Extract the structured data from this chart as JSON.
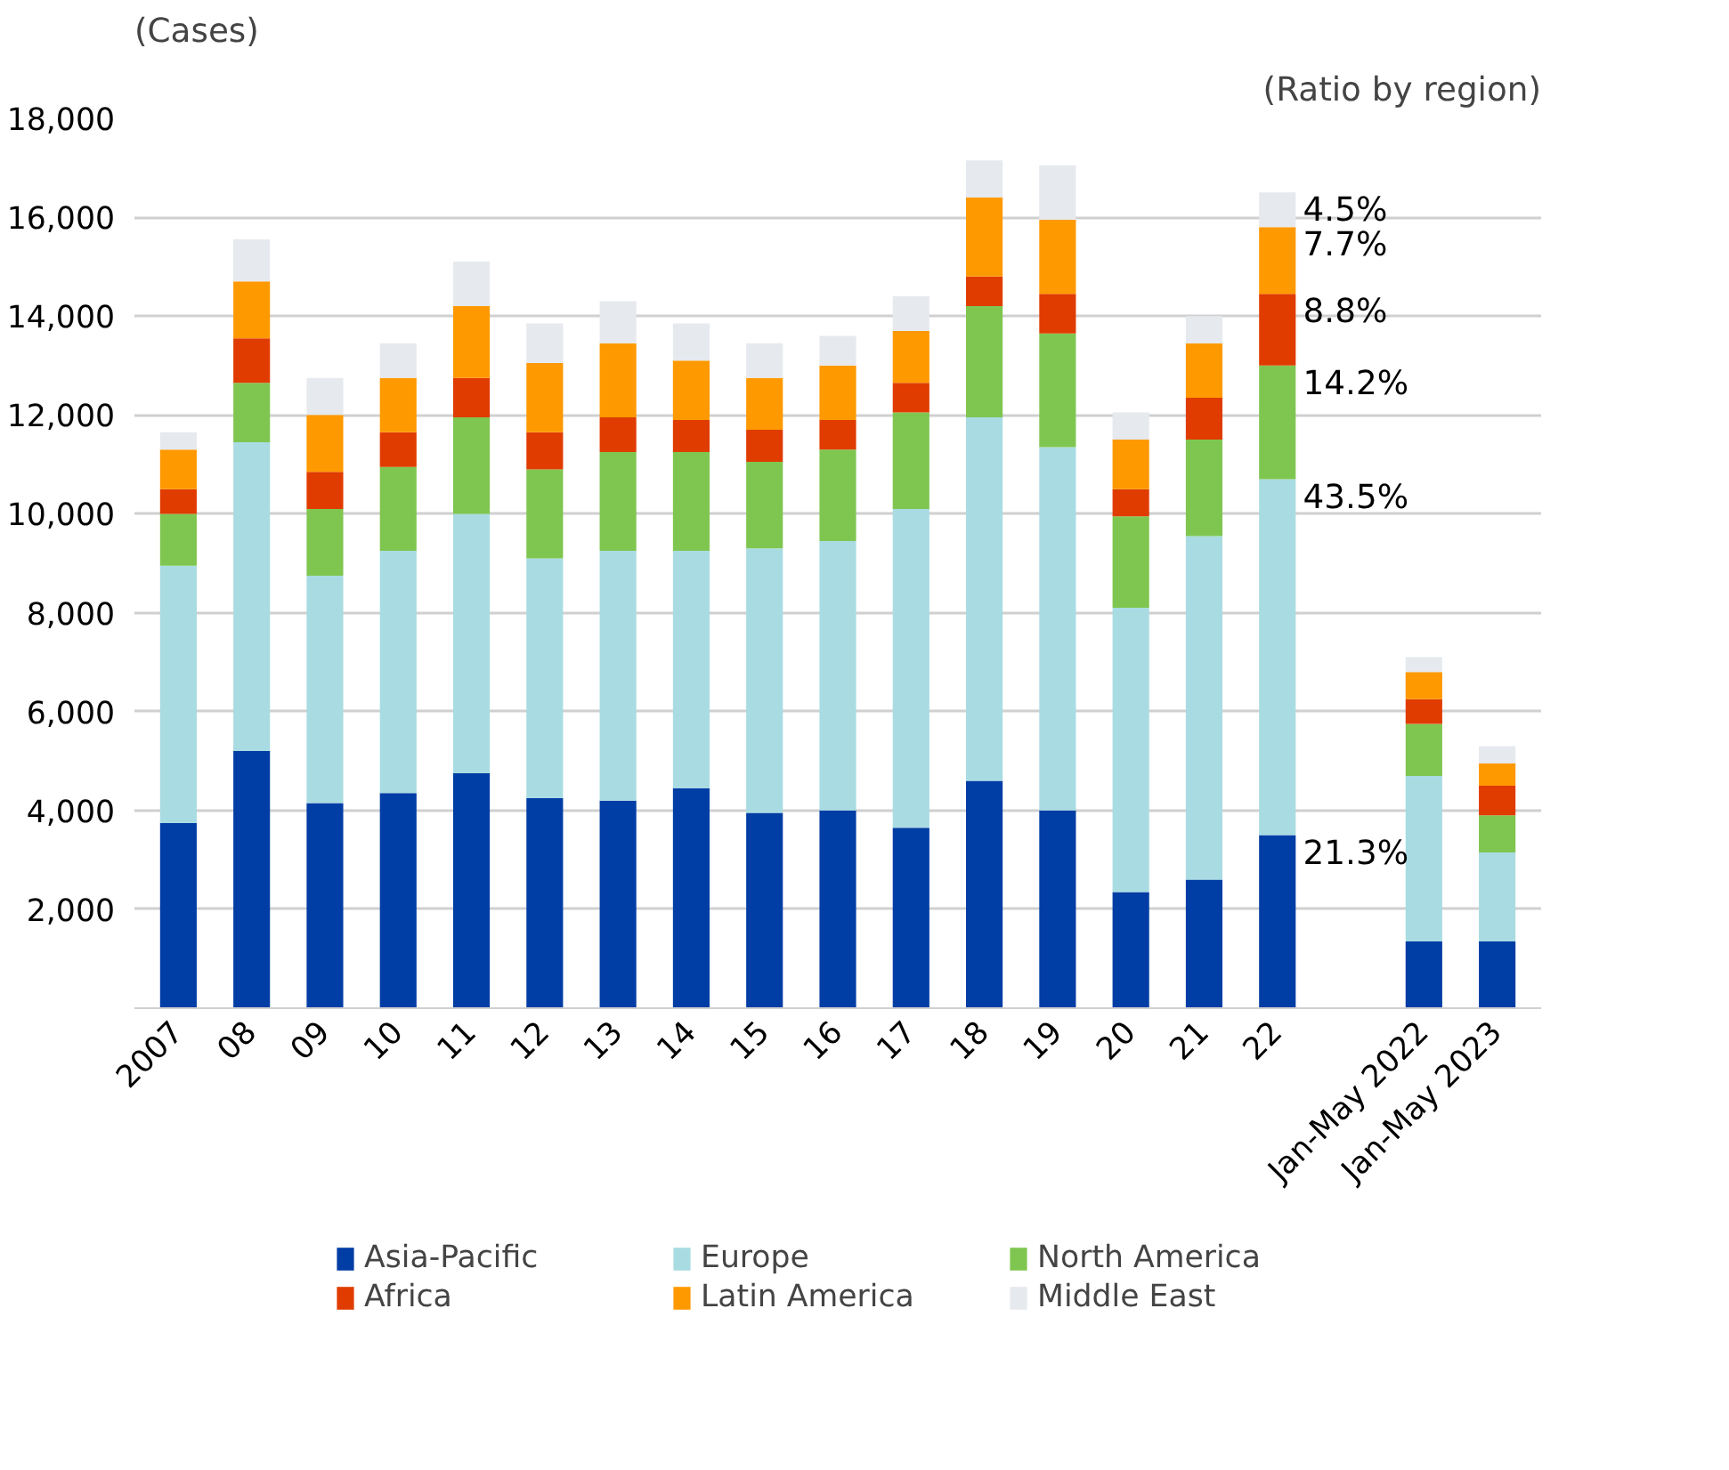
{
  "chart_data": {
    "type": "bar",
    "stacked": true,
    "ylabel": "(Cases)",
    "categories": [
      "2007",
      "08",
      "09",
      "10",
      "11",
      "12",
      "13",
      "14",
      "15",
      "16",
      "17",
      "18",
      "19",
      "20",
      "21",
      "22",
      null,
      "Jan-May 2022",
      "Jan-May 2023"
    ],
    "series": [
      {
        "name": "Asia-Pacific",
        "color": "#003da5",
        "values": [
          3750,
          5200,
          4150,
          4350,
          4750,
          4250,
          4200,
          4450,
          3950,
          4000,
          3650,
          4600,
          4000,
          2350,
          2600,
          3500,
          null,
          1350,
          1350
        ]
      },
      {
        "name": "Europe",
        "color": "#a8dce2",
        "values": [
          5200,
          6250,
          4600,
          4900,
          5250,
          4850,
          5050,
          4800,
          5350,
          5450,
          6450,
          7350,
          7350,
          5750,
          6950,
          7200,
          null,
          3350,
          1800
        ]
      },
      {
        "name": "North America",
        "color": "#7fc650",
        "values": [
          1050,
          1200,
          1350,
          1700,
          1950,
          1800,
          2000,
          2000,
          1750,
          1850,
          1950,
          2250,
          2300,
          1850,
          1950,
          2300,
          null,
          1050,
          750
        ]
      },
      {
        "name": "Africa",
        "color": "#e03c00",
        "values": [
          500,
          900,
          750,
          700,
          800,
          750,
          700,
          650,
          650,
          600,
          600,
          600,
          800,
          550,
          850,
          1450,
          null,
          500,
          600
        ]
      },
      {
        "name": "Latin America",
        "color": "#ff9900",
        "values": [
          800,
          1150,
          1150,
          1100,
          1450,
          1400,
          1500,
          1200,
          1050,
          1100,
          1050,
          1600,
          1500,
          1000,
          1100,
          1350,
          null,
          550,
          450
        ]
      },
      {
        "name": "Middle East",
        "color": "#e6e9ee",
        "values": [
          350,
          850,
          750,
          700,
          900,
          800,
          850,
          750,
          700,
          600,
          700,
          750,
          1100,
          550,
          550,
          700,
          null,
          300,
          350
        ]
      }
    ],
    "ylim": [
      0,
      18000
    ],
    "yticks": [
      {
        "value": 2000,
        "label": "2,000"
      },
      {
        "value": 4000,
        "label": "4,000"
      },
      {
        "value": 6000,
        "label": "6,000"
      },
      {
        "value": 8000,
        "label": "8,000"
      },
      {
        "value": 10000,
        "label": "10,000"
      },
      {
        "value": 12000,
        "label": "12,000"
      },
      {
        "value": 14000,
        "label": "14,000"
      },
      {
        "value": 16000,
        "label": "16,000"
      },
      {
        "value": 18000,
        "label": "18,000"
      }
    ],
    "grid": "y",
    "legend": "bottom",
    "annotations": [
      "(Ratio by region)",
      {
        "text": "4.5%",
        "x": "22",
        "y": 16500
      },
      {
        "text": "7.7%",
        "x": "22",
        "y": 15800
      },
      {
        "text": "8.8%",
        "x": "22",
        "y": 14450
      },
      {
        "text": "14.2%",
        "x": "22",
        "y": 13000
      },
      {
        "text": "43.5%",
        "x": "22",
        "y": 10700
      },
      {
        "text": "21.3%",
        "x": "22",
        "y": 3500
      }
    ]
  }
}
